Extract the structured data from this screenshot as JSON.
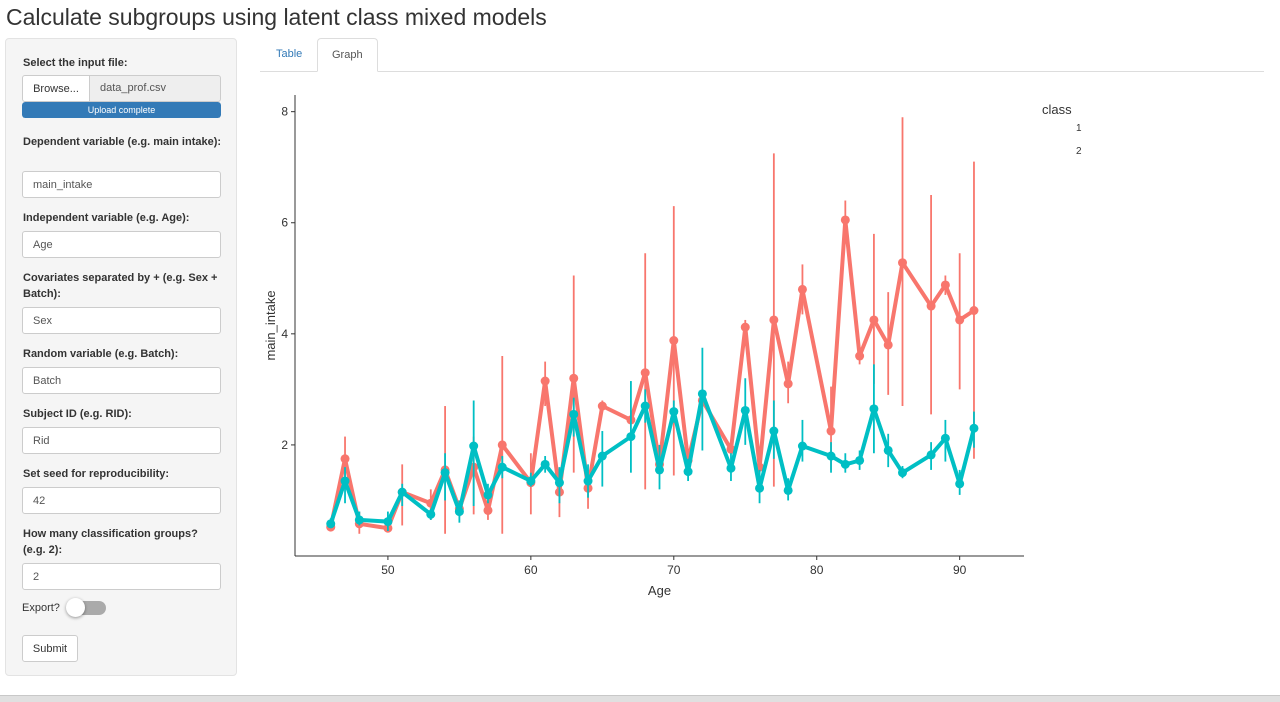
{
  "page": {
    "title": "Calculate subgroups using latent class mixed models"
  },
  "sidebar": {
    "file_label": "Select the input file:",
    "browse_label": "Browse...",
    "file_name": "data_prof.csv",
    "upload_status": "Upload complete",
    "upload_progress": 1.0,
    "dependent_label": "Dependent variable (e.g. main intake):",
    "dependent_value": "main_intake",
    "independent_label": "Independent variable (e.g. Age):",
    "independent_value": "Age",
    "covariates_label": "Covariates separated by + (e.g. Sex + Batch):",
    "covariates_value": "Sex",
    "random_label": "Random variable (e.g. Batch):",
    "random_value": "Batch",
    "subject_label": "Subject ID (e.g. RID):",
    "subject_value": "Rid",
    "seed_label": "Set seed for reproducibility:",
    "seed_value": "42",
    "groups_label": "How many classification groups? (e.g. 2):",
    "groups_value": "2",
    "export_label": "Export?",
    "export_on": false,
    "submit_label": "Submit"
  },
  "tabs": [
    {
      "label": "Table",
      "active": false
    },
    {
      "label": "Graph",
      "active": true
    }
  ],
  "colors": {
    "class1": "#f8766d",
    "class2": "#00bfc4",
    "link": "#337ab7",
    "progress": "#337ab7"
  },
  "chart_data": {
    "type": "line",
    "title": "",
    "xlabel": "Age",
    "ylabel": "main_intake",
    "xlim": [
      43.5,
      94.5
    ],
    "ylim": [
      0,
      8.3
    ],
    "xticks": [
      50,
      60,
      70,
      80,
      90
    ],
    "yticks": [
      2,
      4,
      6,
      8
    ],
    "grid": false,
    "legend": {
      "title": "class",
      "position": "right",
      "entries": [
        "1",
        "2"
      ]
    },
    "series": [
      {
        "name": "1",
        "color": "#f8766d",
        "points": [
          [
            46,
            0.52,
            0.47,
            0.6
          ],
          [
            47,
            1.75,
            1.2,
            2.15
          ],
          [
            48,
            0.58,
            0.4,
            0.8
          ],
          [
            50,
            0.5,
            0.46,
            0.56
          ],
          [
            51,
            1.15,
            0.55,
            1.65
          ],
          [
            53,
            0.95,
            0.65,
            1.2
          ],
          [
            54,
            1.55,
            0.4,
            2.7
          ],
          [
            55,
            0.85,
            0.7,
            1.0
          ],
          [
            56,
            1.6,
            0.75,
            2.15
          ],
          [
            57,
            0.82,
            0.65,
            1.0
          ],
          [
            58,
            2.0,
            0.4,
            3.6
          ],
          [
            60,
            1.32,
            0.75,
            1.85
          ],
          [
            61,
            3.15,
            2.7,
            3.5
          ],
          [
            62,
            1.15,
            0.7,
            1.5
          ],
          [
            63,
            3.2,
            1.5,
            5.05
          ],
          [
            64,
            1.22,
            0.85,
            1.55
          ],
          [
            65,
            2.7,
            2.6,
            2.8
          ],
          [
            67,
            2.45,
            2.4,
            2.5
          ],
          [
            68,
            3.3,
            1.2,
            5.45
          ],
          [
            69,
            1.65,
            1.55,
            1.75
          ],
          [
            70,
            3.88,
            1.45,
            6.3
          ],
          [
            71,
            1.72,
            1.6,
            1.85
          ],
          [
            72,
            2.8,
            2.7,
            2.9
          ],
          [
            74,
            1.92,
            1.85,
            2.0
          ],
          [
            75,
            4.12,
            3.95,
            4.25
          ],
          [
            76,
            1.6,
            1.35,
            1.85
          ],
          [
            77,
            4.25,
            1.25,
            7.25
          ],
          [
            78,
            3.1,
            2.75,
            3.5
          ],
          [
            79,
            4.8,
            4.35,
            5.25
          ],
          [
            81,
            2.25,
            1.55,
            3.05
          ],
          [
            82,
            6.05,
            5.65,
            6.4
          ],
          [
            83,
            3.6,
            3.45,
            3.75
          ],
          [
            84,
            4.25,
            3.1,
            5.8
          ],
          [
            85,
            3.8,
            2.9,
            4.75
          ],
          [
            86,
            5.28,
            2.7,
            7.9
          ],
          [
            88,
            4.5,
            2.55,
            6.5
          ],
          [
            89,
            4.88,
            4.7,
            5.05
          ],
          [
            90,
            4.25,
            3.0,
            5.45
          ],
          [
            91,
            4.42,
            1.75,
            7.1
          ]
        ]
      },
      {
        "name": "2",
        "color": "#00bfc4",
        "points": [
          [
            46,
            0.58,
            0.5,
            0.68
          ],
          [
            47,
            1.35,
            0.95,
            1.6
          ],
          [
            48,
            0.65,
            0.55,
            0.8
          ],
          [
            50,
            0.62,
            0.45,
            0.8
          ],
          [
            51,
            1.15,
            0.9,
            1.3
          ],
          [
            53,
            0.75,
            0.65,
            0.85
          ],
          [
            54,
            1.5,
            1.0,
            1.85
          ],
          [
            55,
            0.8,
            0.6,
            1.0
          ],
          [
            56,
            1.98,
            0.9,
            2.8
          ],
          [
            57,
            1.1,
            0.95,
            1.3
          ],
          [
            58,
            1.6,
            1.4,
            1.8
          ],
          [
            60,
            1.35,
            1.25,
            1.5
          ],
          [
            61,
            1.65,
            1.5,
            1.8
          ],
          [
            62,
            1.32,
            0.95,
            1.6
          ],
          [
            63,
            2.55,
            2.15,
            2.85
          ],
          [
            64,
            1.35,
            1.05,
            1.65
          ],
          [
            65,
            1.8,
            1.25,
            2.25
          ],
          [
            67,
            2.15,
            1.5,
            3.15
          ],
          [
            68,
            2.7,
            2.4,
            3.0
          ],
          [
            69,
            1.55,
            1.2,
            2.0
          ],
          [
            70,
            2.6,
            2.4,
            2.8
          ],
          [
            71,
            1.52,
            1.35,
            1.75
          ],
          [
            72,
            2.92,
            1.9,
            3.75
          ],
          [
            74,
            1.58,
            1.35,
            1.85
          ],
          [
            75,
            2.62,
            2.0,
            3.2
          ],
          [
            76,
            1.22,
            0.95,
            1.55
          ],
          [
            77,
            2.25,
            1.75,
            2.8
          ],
          [
            78,
            1.18,
            1.0,
            1.4
          ],
          [
            79,
            1.98,
            1.7,
            2.45
          ],
          [
            81,
            1.8,
            1.5,
            2.05
          ],
          [
            82,
            1.65,
            1.5,
            1.85
          ],
          [
            83,
            1.72,
            1.55,
            1.9
          ],
          [
            84,
            2.65,
            1.85,
            3.45
          ],
          [
            85,
            1.9,
            1.6,
            2.2
          ],
          [
            86,
            1.5,
            1.4,
            1.62
          ],
          [
            88,
            1.82,
            1.55,
            2.05
          ],
          [
            89,
            2.12,
            1.7,
            2.45
          ],
          [
            90,
            1.3,
            1.1,
            1.55
          ],
          [
            91,
            2.3,
            1.95,
            2.6
          ]
        ]
      }
    ]
  }
}
